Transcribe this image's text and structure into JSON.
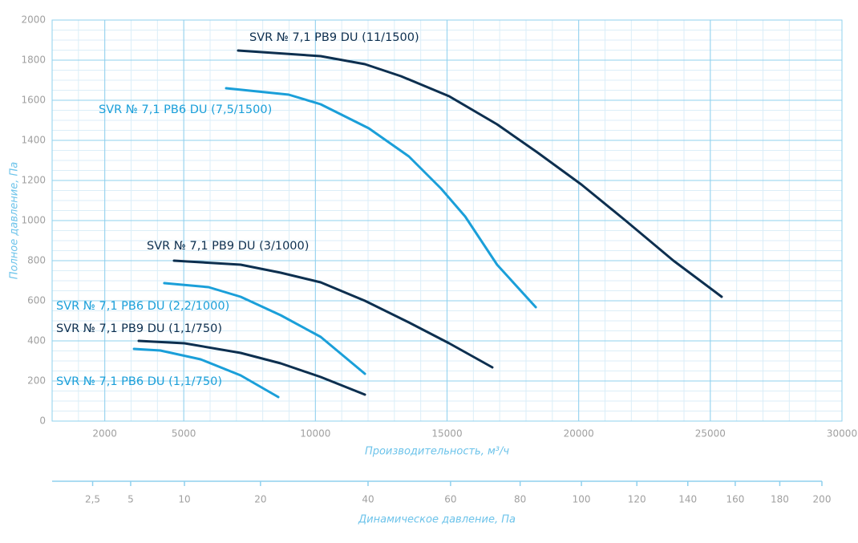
{
  "chart_data": {
    "type": "line",
    "x_label": "Производительность, м³/ч",
    "y_label": "Полное давление, Па",
    "xlim": [
      0,
      30000
    ],
    "xticks": [
      2000,
      5000,
      10000,
      15000,
      20000,
      25000,
      30000
    ],
    "ylim": [
      0,
      2000
    ],
    "yticks": [
      0,
      200,
      400,
      600,
      800,
      1000,
      1200,
      1400,
      1600,
      1800,
      2000
    ],
    "grid": true,
    "minor_grid": {
      "x": 1000,
      "y": 50
    },
    "series": [
      {
        "name": "SVR № 7,1 PB9 DU (11/1500)",
        "color": "#0d2f4f",
        "x": [
          7066,
          10200,
          11880,
          13250,
          15080,
          16900,
          18430,
          20100,
          21780,
          23600,
          25430
        ],
        "values": [
          1848,
          1820,
          1780,
          1720,
          1620,
          1480,
          1340,
          1180,
          1000,
          800,
          620
        ]
      },
      {
        "name": "SVR № 7,1 PB6 DU (7,5/1500)",
        "color": "#1a9fd9",
        "x": [
          6610,
          8985,
          10200,
          12030,
          13550,
          14770,
          15690,
          16900,
          18370
        ],
        "values": [
          1660,
          1628,
          1580,
          1460,
          1320,
          1160,
          1020,
          780,
          568
        ]
      },
      {
        "name": "SVR № 7,1 PB9 DU (3/1000)",
        "color": "#0d2f4f",
        "x": [
          4630,
          7160,
          8680,
          10200,
          11880,
          13550,
          15080,
          16720
        ],
        "values": [
          800,
          780,
          740,
          692,
          600,
          492,
          388,
          268
        ]
      },
      {
        "name": "SVR № 7,1 PB6 DU (2,2/1000)",
        "color": "#1a9fd9",
        "x": [
          4260,
          5940,
          7160,
          8680,
          10200,
          11880
        ],
        "values": [
          688,
          668,
          620,
          528,
          420,
          236
        ]
      },
      {
        "name": "SVR № 7,1 PB9 DU (1,1/750)",
        "color": "#0d2f4f",
        "x": [
          3290,
          5030,
          7160,
          8680,
          10200,
          11880
        ],
        "values": [
          400,
          388,
          340,
          288,
          220,
          132
        ]
      },
      {
        "name": "SVR № 7,1 PB6 DU (1,1/750)",
        "color": "#1a9fd9",
        "x": [
          3110,
          4110,
          5640,
          7160,
          8590
        ],
        "values": [
          360,
          352,
          308,
          228,
          120
        ]
      }
    ],
    "x2_label": "Динамическое давление, Па",
    "x2scale": "sqrt",
    "x2lim": [
      0.78,
      200
    ],
    "x2ticks": [
      {
        "value": 2.5,
        "label": "2,5"
      },
      5,
      10,
      20,
      40,
      60,
      80,
      100,
      120,
      140,
      160,
      180,
      200
    ]
  }
}
